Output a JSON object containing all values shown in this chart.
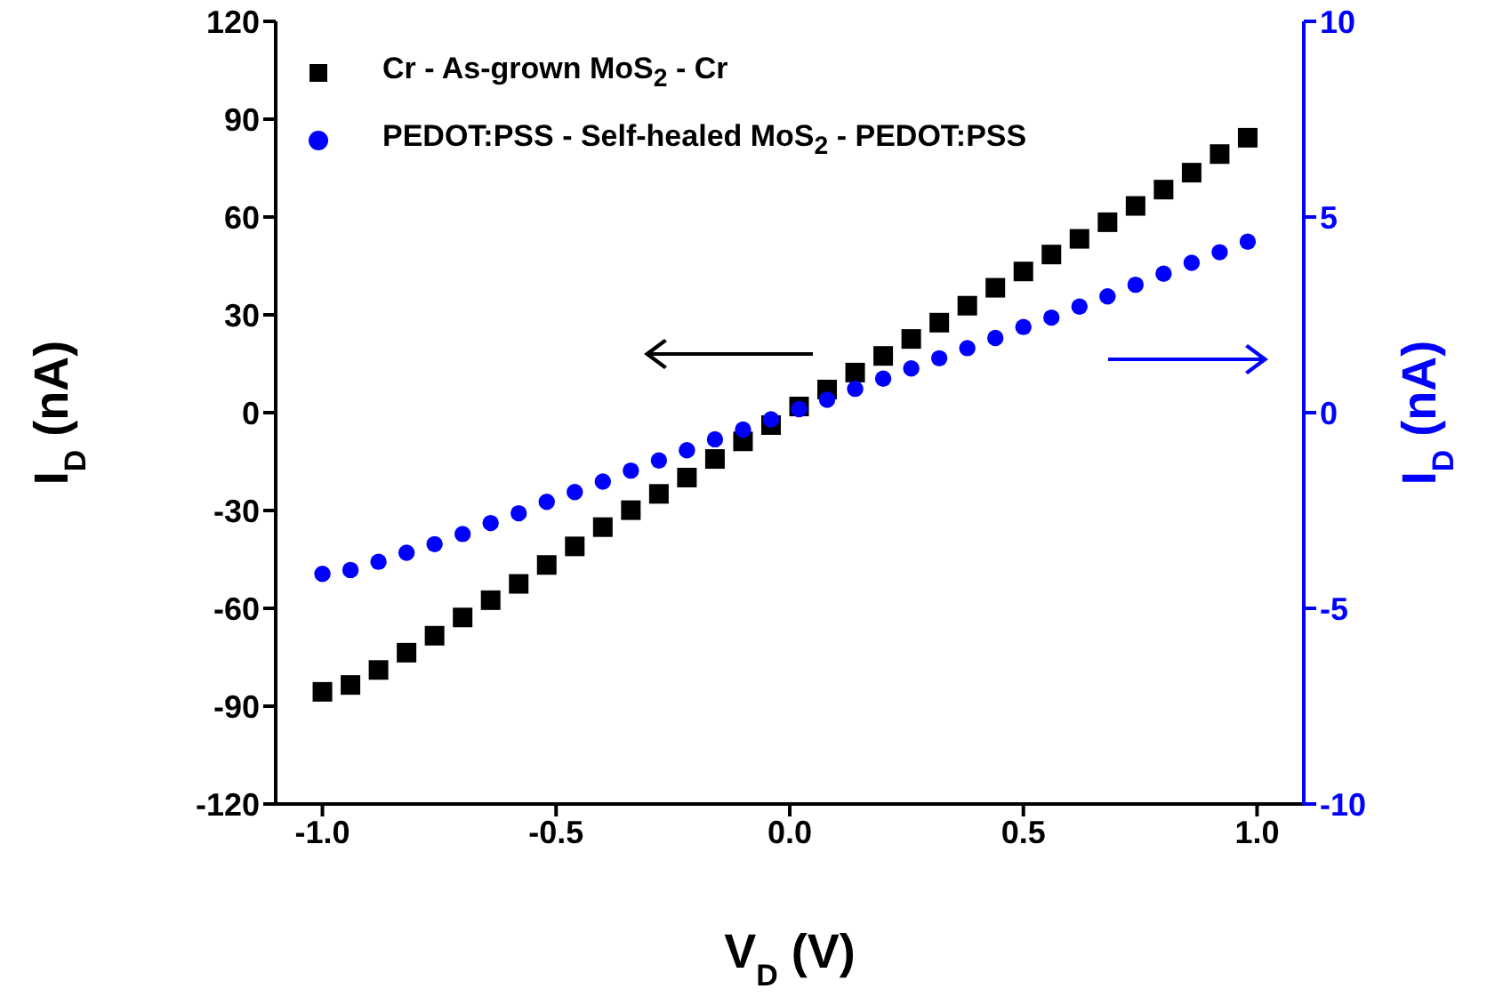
{
  "chart_data": {
    "type": "scatter",
    "xlabel": "V$_{D}$ (V)",
    "ylabel": "I$_{D}$ (nA)",
    "y2label": "I$_{D}$ (nA)",
    "x": [
      -1.0,
      -0.94,
      -0.88,
      -0.82,
      -0.76,
      -0.7,
      -0.64,
      -0.58,
      -0.52,
      -0.46,
      -0.4,
      -0.34,
      -0.28,
      -0.22,
      -0.16,
      -0.1,
      -0.04,
      0.02,
      0.08,
      0.14,
      0.2,
      0.26,
      0.32,
      0.38,
      0.44,
      0.5,
      0.56,
      0.62,
      0.68,
      0.74,
      0.8,
      0.86,
      0.92,
      0.98
    ],
    "series": [
      {
        "name": "Cr - As-grown MoS$_{2}$ - Cr",
        "color": "#000000",
        "marker": "square",
        "values": [
          -85.6,
          -83.5,
          -78.9,
          -73.6,
          -68.4,
          -62.8,
          -57.5,
          -52.5,
          -46.7,
          -41.0,
          -35.1,
          -29.9,
          -24.9,
          -19.9,
          -14.2,
          -8.8,
          -3.8,
          1.9,
          7.1,
          12.3,
          17.4,
          22.6,
          27.6,
          32.8,
          38.3,
          43.3,
          48.5,
          53.3,
          58.4,
          63.4,
          68.4,
          73.6,
          79.3,
          84.3
        ]
      },
      {
        "name": "PEDOT:PSS - Self-healed MoS$_{2}$ - PEDOT:PSS",
        "color": "#0000ff",
        "marker": "circle",
        "axis": "y2",
        "values": [
          -4.12,
          -4.02,
          -3.81,
          -3.58,
          -3.36,
          -3.1,
          -2.82,
          -2.57,
          -2.28,
          -2.03,
          -1.76,
          -1.48,
          -1.22,
          -0.96,
          -0.68,
          -0.43,
          -0.17,
          0.09,
          0.33,
          0.61,
          0.87,
          1.13,
          1.39,
          1.65,
          1.91,
          2.19,
          2.43,
          2.71,
          2.97,
          3.27,
          3.55,
          3.83,
          4.1,
          4.37
        ]
      }
    ],
    "xlim": [
      -1.1,
      1.1
    ],
    "xticks": [
      {
        "value": -1,
        "label": "-1.0"
      },
      {
        "value": -0.5,
        "label": "-0.5"
      },
      {
        "value": 0,
        "label": "0.0"
      },
      {
        "value": 0.5,
        "label": "0.5"
      },
      {
        "value": 1,
        "label": "1.0"
      }
    ],
    "ylim": [
      -120,
      120
    ],
    "yticks": [
      -120,
      -90,
      -60,
      -30,
      0,
      30,
      60,
      90,
      120
    ],
    "y2lim": [
      -10,
      10
    ],
    "y2ticks": [
      -10,
      -5,
      0,
      5,
      10
    ],
    "legend": "top left",
    "grid": false
  }
}
